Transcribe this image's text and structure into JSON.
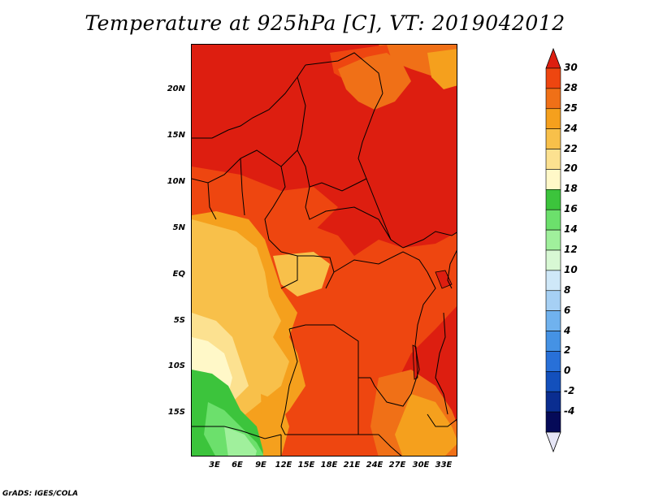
{
  "title": "Temperature at 925hPa [C], VT: 2019042012",
  "footer": "GrADS: IGES/COLA",
  "map": {
    "lat_labels": [
      "20N",
      "15N",
      "10N",
      "5N",
      "EQ",
      "5S",
      "10S",
      "15S"
    ],
    "lon_labels": [
      "3E",
      "6E",
      "9E",
      "12E",
      "15E",
      "18E",
      "21E",
      "24E",
      "27E",
      "30E",
      "33E"
    ]
  },
  "colorbar": {
    "labels": [
      "30",
      "28",
      "25",
      "24",
      "22",
      "20",
      "18",
      "16",
      "14",
      "12",
      "10",
      "8",
      "6",
      "4",
      "2",
      "0",
      "-2",
      "-4"
    ],
    "colors": [
      "#dd1e10",
      "#ee4610",
      "#f07017",
      "#f5a01d",
      "#f8c04a",
      "#fce190",
      "#fff8c8",
      "#3cc43c",
      "#6ce06c",
      "#a0f09c",
      "#d8f8d4",
      "#cfe8f8",
      "#a6d0f4",
      "#70b2ee",
      "#4592e4",
      "#2870d8",
      "#1350bc",
      "#0a2d90",
      "#050a58",
      "#e6e6f6"
    ]
  }
}
